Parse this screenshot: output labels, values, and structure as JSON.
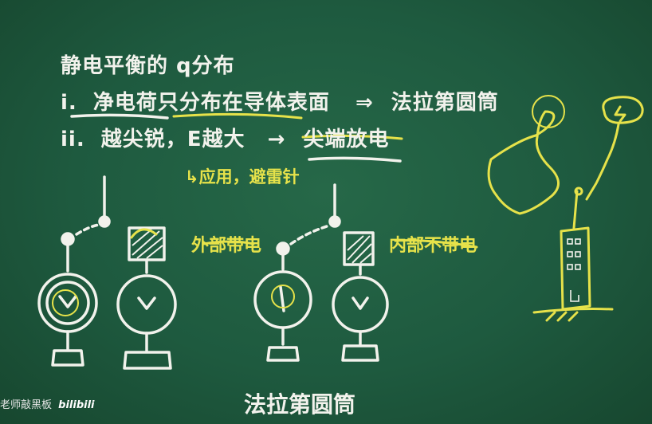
{
  "board": {
    "heading": "静电平衡的 q分布",
    "item1": {
      "num": "i.",
      "text_a": "净电荷只分布在导体表面",
      "arrow": "⇒",
      "text_b": "法拉第圆筒"
    },
    "item2": {
      "num": "ii.",
      "text_a": "越尖锐，E越大",
      "arrow": "→",
      "text_b": "尖端放电"
    },
    "application_note": "↳应用，避雷针",
    "label_outer": "外部带电",
    "label_inner": "内部不带电",
    "bottom_title": "法拉第圆筒"
  },
  "watermark": {
    "text": "老师敲黑板",
    "logo": "bilibili"
  },
  "colors": {
    "board": "#1f5a40",
    "chalk": "#f2f2ec",
    "yellow": "#e6e24a"
  }
}
